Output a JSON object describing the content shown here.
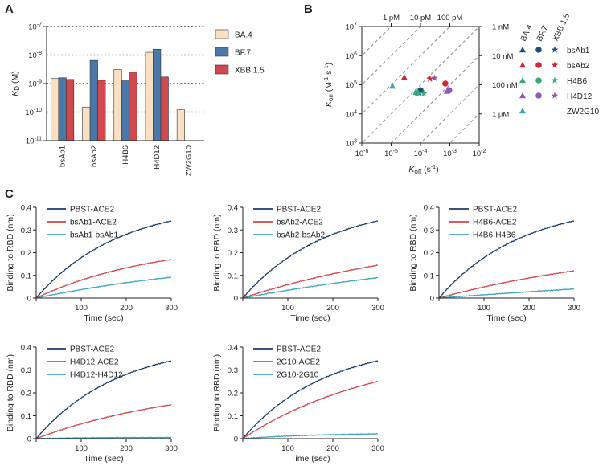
{
  "panel_labels": {
    "a": "A",
    "b": "B",
    "c": "C"
  },
  "chart_data": [
    {
      "panel": "A",
      "type": "bar",
      "title": "",
      "ylabel": "KD (M)",
      "yscale": "log",
      "ylim": [
        1e-11,
        1e-07
      ],
      "ytick_labels": [
        "10-11",
        "10-10",
        "10-9",
        "10-8",
        "10-7"
      ],
      "categories": [
        "bsAb1",
        "bsAb2",
        "H4B6",
        "H4D12",
        "ZW2G10"
      ],
      "reference_lines": [
        1e-10,
        1e-09,
        1e-08,
        1e-07
      ],
      "series": [
        {
          "name": "BA.4",
          "color": "#fce0c4",
          "values": [
            1.5e-09,
            1.5e-10,
            3.1e-09,
            1.25e-08,
            1.2e-10
          ]
        },
        {
          "name": "BF.7",
          "color": "#4a78a8",
          "values": [
            1.6e-09,
            6.5e-09,
            1.25e-09,
            1.6e-08,
            null
          ]
        },
        {
          "name": "XBB.1.5",
          "color": "#d1484f",
          "values": [
            1.4e-09,
            1.3e-09,
            2.5e-09,
            1.7e-09,
            null
          ]
        }
      ],
      "legend": [
        "BA.4",
        "BF.7",
        "XBB.1.5"
      ]
    },
    {
      "panel": "B",
      "type": "scatter",
      "xlabel": "Koff (s-1)",
      "ylabel": "Kon (M-1 s-1)",
      "xscale": "log",
      "yscale": "log",
      "xlim": [
        1e-06,
        0.01
      ],
      "ylim": [
        1000.0,
        10000000.0
      ],
      "x_tick_labels": [
        "10-6",
        "10-5",
        "10-4",
        "10-3",
        "10-2"
      ],
      "y_tick_labels": [
        "103",
        "104",
        "105",
        "106",
        "107"
      ],
      "top_labels": [
        "1 pM",
        "10 pM",
        "100 pM"
      ],
      "right_labels": [
        "1 nM",
        "10 nM",
        "100 nM",
        "1 μM"
      ],
      "diagonals_kd": [
        1e-12,
        1e-11,
        1e-10,
        1e-09,
        1e-08,
        1e-07,
        1e-06
      ],
      "legend_columns": [
        "BA.4",
        "BF.7",
        "XBB.1.5"
      ],
      "antibodies": [
        {
          "name": "bsAb1",
          "color": "#1f4e79"
        },
        {
          "name": "bsAb2",
          "color": "#d1282f"
        },
        {
          "name": "H4B6",
          "color": "#3aa87a"
        },
        {
          "name": "H4D12",
          "color": "#8e59b8"
        },
        {
          "name": "ZW2G10",
          "color": "#38a8b8"
        }
      ],
      "points": [
        {
          "antibody": "bsAb1",
          "variant": "BA.4",
          "koff": 8.5e-05,
          "kon": 55000.0
        },
        {
          "antibody": "bsAb1",
          "variant": "BF.7",
          "koff": 0.0001,
          "kon": 65000.0
        },
        {
          "antibody": "bsAb1",
          "variant": "XBB.1.5",
          "koff": 9e-05,
          "kon": 52000.0
        },
        {
          "antibody": "bsAb2",
          "variant": "BA.4",
          "koff": 2.8e-05,
          "kon": 180000.0
        },
        {
          "antibody": "bsAb2",
          "variant": "BF.7",
          "koff": 0.0007,
          "kon": 110000.0
        },
        {
          "antibody": "bsAb2",
          "variant": "XBB.1.5",
          "koff": 0.00021,
          "kon": 160000.0
        },
        {
          "antibody": "H4B6",
          "variant": "BA.4",
          "koff": 7e-05,
          "kon": 55000.0
        },
        {
          "antibody": "H4B6",
          "variant": "BF.7",
          "koff": 7.5e-05,
          "kon": 53000.0
        },
        {
          "antibody": "H4B6",
          "variant": "XBB.1.5",
          "koff": 0.00013,
          "kon": 50000.0
        },
        {
          "antibody": "H4D12",
          "variant": "BA.4",
          "koff": 0.0008,
          "kon": 60000.0
        },
        {
          "antibody": "H4D12",
          "variant": "BF.7",
          "koff": 0.00095,
          "kon": 65000.0
        },
        {
          "antibody": "H4D12",
          "variant": "XBB.1.5",
          "koff": 0.0003,
          "kon": 170000.0
        },
        {
          "antibody": "ZW2G10",
          "variant": "BA.4",
          "koff": 1.1e-05,
          "kon": 90000.0
        }
      ]
    },
    {
      "panel": "C1",
      "type": "line",
      "xlabel": "Time (sec)",
      "ylabel": "Binding to RBD (nm)",
      "xlim": [
        0,
        300
      ],
      "ylim": [
        0,
        0.4
      ],
      "x_ticks": [
        0,
        100,
        200,
        300
      ],
      "y_ticks": [
        0,
        0.1,
        0.2,
        0.3,
        0.4
      ],
      "series": [
        {
          "name": "PBST-ACE2",
          "color": "#1a3d66",
          "plateau": 0.43,
          "rate": 0.0055,
          "final": 0.34
        },
        {
          "name": "bsAb1-ACE2",
          "color": "#d1484f",
          "plateau": 0.25,
          "rate": 0.0038,
          "final": 0.17
        },
        {
          "name": "bsAb1-bsAb1",
          "color": "#3aa6b9",
          "plateau": 0.2,
          "rate": 0.0021,
          "final": 0.092
        }
      ]
    },
    {
      "panel": "C2",
      "type": "line",
      "xlabel": "Time (sec)",
      "ylabel": "Binding to RBD (nm)",
      "xlim": [
        0,
        300
      ],
      "ylim": [
        0,
        0.4
      ],
      "x_ticks": [
        0,
        100,
        200,
        300
      ],
      "y_ticks": [
        0,
        0.1,
        0.2,
        0.3,
        0.4
      ],
      "series": [
        {
          "name": "PBST-ACE2",
          "color": "#1a3d66",
          "plateau": 0.43,
          "rate": 0.0055,
          "final": 0.34
        },
        {
          "name": "bsAb2-ACE2",
          "color": "#d1484f",
          "plateau": 0.3,
          "rate": 0.0022,
          "final": 0.145
        },
        {
          "name": "bsAb2-bsAb2",
          "color": "#3aa6b9",
          "plateau": 0.25,
          "rate": 0.0015,
          "final": 0.09
        }
      ]
    },
    {
      "panel": "C3",
      "type": "line",
      "xlabel": "Time (sec)",
      "ylabel": "Binding to RBD (nm)",
      "xlim": [
        0,
        300
      ],
      "ylim": [
        0,
        0.4
      ],
      "x_ticks": [
        0,
        100,
        200,
        300
      ],
      "y_ticks": [
        0,
        0.1,
        0.2,
        0.3,
        0.4
      ],
      "series": [
        {
          "name": "PBST-ACE2",
          "color": "#1a3d66",
          "plateau": 0.43,
          "rate": 0.0055,
          "final": 0.34
        },
        {
          "name": "H4B6-ACE2",
          "color": "#d1484f",
          "plateau": 0.25,
          "rate": 0.0022,
          "final": 0.12
        },
        {
          "name": "H4B6-H4B6",
          "color": "#3aa6b9",
          "plateau": 0.2,
          "rate": 0.0008,
          "final": 0.04
        }
      ]
    },
    {
      "panel": "C4",
      "type": "line",
      "xlabel": "Time (sec)",
      "ylabel": "Binding to RBD (nm)",
      "xlim": [
        0,
        300
      ],
      "ylim": [
        0,
        0.4
      ],
      "x_ticks": [
        0,
        100,
        200,
        300
      ],
      "y_ticks": [
        0,
        0.1,
        0.2,
        0.3,
        0.4
      ],
      "series": [
        {
          "name": "PBST-ACE2",
          "color": "#1a3d66",
          "plateau": 0.43,
          "rate": 0.0055,
          "final": 0.34
        },
        {
          "name": "H4D12-ACE2",
          "color": "#d1484f",
          "plateau": 0.25,
          "rate": 0.003,
          "final": 0.148
        },
        {
          "name": "H4D12-H4D12",
          "color": "#3aa6b9",
          "plateau": 0.01,
          "rate": 0.01,
          "final": 0.005
        }
      ]
    },
    {
      "panel": "C5",
      "type": "line",
      "xlabel": "Time (sec)",
      "ylabel": "Binding to RBD (nm)",
      "xlim": [
        0,
        300
      ],
      "ylim": [
        0,
        0.4
      ],
      "x_ticks": [
        0,
        100,
        200,
        300
      ],
      "y_ticks": [
        0,
        0.1,
        0.2,
        0.3,
        0.4
      ],
      "series": [
        {
          "name": "PBST-ACE2",
          "color": "#1a3d66",
          "plateau": 0.43,
          "rate": 0.0055,
          "final": 0.34
        },
        {
          "name": "2G10-ACE2",
          "color": "#d1484f",
          "plateau": 0.4,
          "rate": 0.0033,
          "final": 0.25
        },
        {
          "name": "2G10-2G10",
          "color": "#3aa6b9",
          "plateau": 0.025,
          "rate": 0.006,
          "final": 0.021
        }
      ]
    }
  ]
}
